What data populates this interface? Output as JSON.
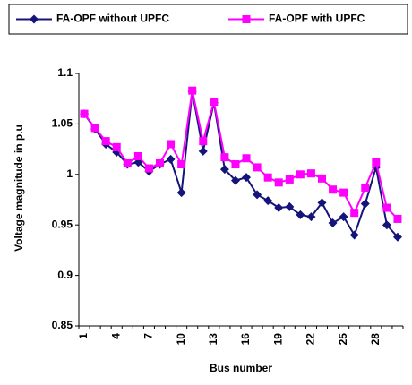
{
  "chart_data": {
    "type": "line",
    "ylabel": "Voltage magnitude in p.u",
    "xlabel": "Bus number",
    "categories": [
      "1",
      null,
      null,
      "4",
      null,
      null,
      "7",
      null,
      null,
      "10",
      null,
      null,
      "13",
      null,
      null,
      "16",
      null,
      null,
      "19",
      null,
      null,
      "22",
      null,
      null,
      "25",
      null,
      null,
      "28",
      null,
      null
    ],
    "series": [
      {
        "name": "FA-OPF without UPFC",
        "color": "#14147a",
        "marker": "diamond",
        "values": [
          1.06,
          1.045,
          1.03,
          1.022,
          1.01,
          1.012,
          1.003,
          1.01,
          1.015,
          0.982,
          1.082,
          1.023,
          1.071,
          1.005,
          0.994,
          0.997,
          0.98,
          0.974,
          0.967,
          0.968,
          0.96,
          0.958,
          0.972,
          0.952,
          0.958,
          0.94,
          0.971,
          1.007,
          0.95,
          0.938
        ]
      },
      {
        "name": "FA-OPF with UPFC",
        "color": "#ff00ff",
        "marker": "square",
        "values": [
          1.06,
          1.046,
          1.033,
          1.027,
          1.011,
          1.018,
          1.006,
          1.011,
          1.03,
          1.01,
          1.083,
          1.033,
          1.072,
          1.017,
          1.01,
          1.016,
          1.007,
          0.997,
          0.992,
          0.995,
          1.0,
          1.001,
          0.996,
          0.985,
          0.982,
          0.962,
          0.987,
          1.012,
          0.967,
          0.956
        ]
      }
    ],
    "ylim": [
      0.85,
      1.1
    ],
    "yticks": [
      0.85,
      0.9,
      0.95,
      1,
      1.05,
      1.1
    ],
    "grid": false
  }
}
